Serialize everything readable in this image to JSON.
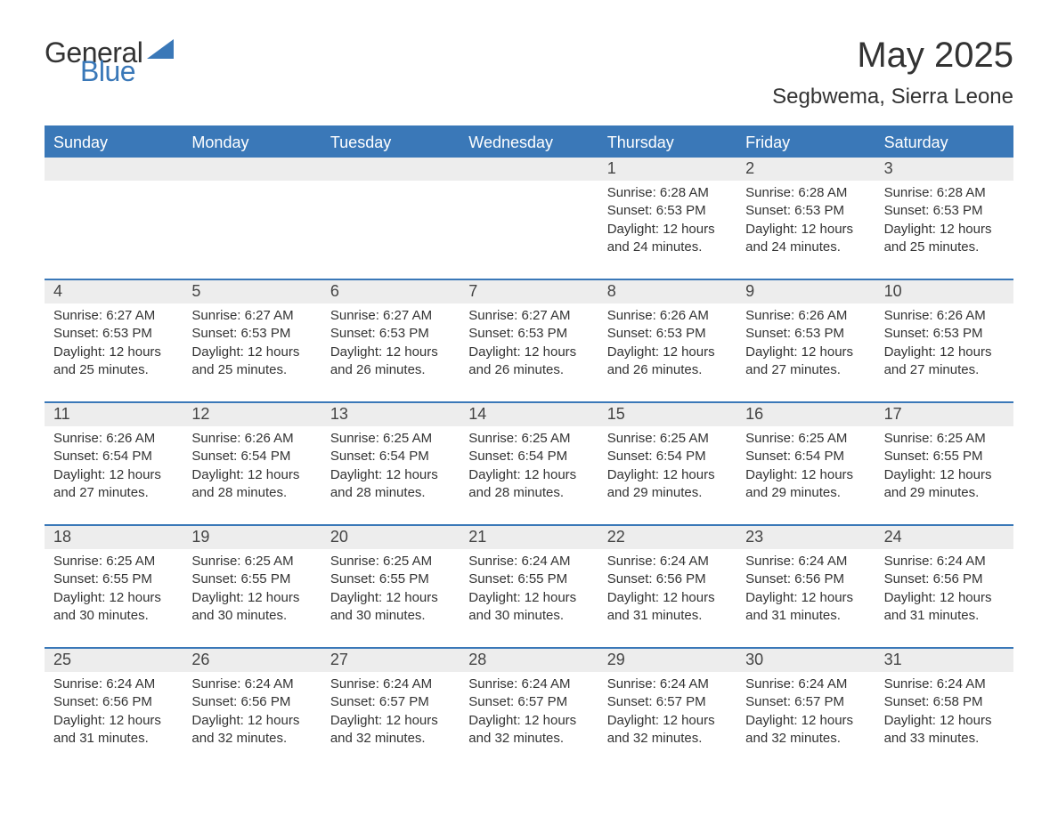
{
  "colors": {
    "brand_blue": "#3a78b8",
    "header_bg": "#3a78b8",
    "header_text": "#ffffff",
    "daynum_bg": "#ededed",
    "body_bg": "#ffffff",
    "text": "#333333",
    "rule": "#3a78b8"
  },
  "typography": {
    "title_fontsize": 40,
    "subtitle_fontsize": 24,
    "dayhead_fontsize": 18,
    "daynum_fontsize": 18,
    "body_fontsize": 15,
    "font_family": "Segoe UI, Arial, sans-serif"
  },
  "logo": {
    "word1": "General",
    "word2": "Blue"
  },
  "title": "May 2025",
  "subtitle": "Segbwema, Sierra Leone",
  "day_headers": [
    "Sunday",
    "Monday",
    "Tuesday",
    "Wednesday",
    "Thursday",
    "Friday",
    "Saturday"
  ],
  "labels": {
    "sunrise": "Sunrise: ",
    "sunset": "Sunset: ",
    "daylight": "Daylight: "
  },
  "weeks": [
    [
      null,
      null,
      null,
      null,
      {
        "n": "1",
        "sunrise": "6:28 AM",
        "sunset": "6:53 PM",
        "daylight": "12 hours and 24 minutes."
      },
      {
        "n": "2",
        "sunrise": "6:28 AM",
        "sunset": "6:53 PM",
        "daylight": "12 hours and 24 minutes."
      },
      {
        "n": "3",
        "sunrise": "6:28 AM",
        "sunset": "6:53 PM",
        "daylight": "12 hours and 25 minutes."
      }
    ],
    [
      {
        "n": "4",
        "sunrise": "6:27 AM",
        "sunset": "6:53 PM",
        "daylight": "12 hours and 25 minutes."
      },
      {
        "n": "5",
        "sunrise": "6:27 AM",
        "sunset": "6:53 PM",
        "daylight": "12 hours and 25 minutes."
      },
      {
        "n": "6",
        "sunrise": "6:27 AM",
        "sunset": "6:53 PM",
        "daylight": "12 hours and 26 minutes."
      },
      {
        "n": "7",
        "sunrise": "6:27 AM",
        "sunset": "6:53 PM",
        "daylight": "12 hours and 26 minutes."
      },
      {
        "n": "8",
        "sunrise": "6:26 AM",
        "sunset": "6:53 PM",
        "daylight": "12 hours and 26 minutes."
      },
      {
        "n": "9",
        "sunrise": "6:26 AM",
        "sunset": "6:53 PM",
        "daylight": "12 hours and 27 minutes."
      },
      {
        "n": "10",
        "sunrise": "6:26 AM",
        "sunset": "6:53 PM",
        "daylight": "12 hours and 27 minutes."
      }
    ],
    [
      {
        "n": "11",
        "sunrise": "6:26 AM",
        "sunset": "6:54 PM",
        "daylight": "12 hours and 27 minutes."
      },
      {
        "n": "12",
        "sunrise": "6:26 AM",
        "sunset": "6:54 PM",
        "daylight": "12 hours and 28 minutes."
      },
      {
        "n": "13",
        "sunrise": "6:25 AM",
        "sunset": "6:54 PM",
        "daylight": "12 hours and 28 minutes."
      },
      {
        "n": "14",
        "sunrise": "6:25 AM",
        "sunset": "6:54 PM",
        "daylight": "12 hours and 28 minutes."
      },
      {
        "n": "15",
        "sunrise": "6:25 AM",
        "sunset": "6:54 PM",
        "daylight": "12 hours and 29 minutes."
      },
      {
        "n": "16",
        "sunrise": "6:25 AM",
        "sunset": "6:54 PM",
        "daylight": "12 hours and 29 minutes."
      },
      {
        "n": "17",
        "sunrise": "6:25 AM",
        "sunset": "6:55 PM",
        "daylight": "12 hours and 29 minutes."
      }
    ],
    [
      {
        "n": "18",
        "sunrise": "6:25 AM",
        "sunset": "6:55 PM",
        "daylight": "12 hours and 30 minutes."
      },
      {
        "n": "19",
        "sunrise": "6:25 AM",
        "sunset": "6:55 PM",
        "daylight": "12 hours and 30 minutes."
      },
      {
        "n": "20",
        "sunrise": "6:25 AM",
        "sunset": "6:55 PM",
        "daylight": "12 hours and 30 minutes."
      },
      {
        "n": "21",
        "sunrise": "6:24 AM",
        "sunset": "6:55 PM",
        "daylight": "12 hours and 30 minutes."
      },
      {
        "n": "22",
        "sunrise": "6:24 AM",
        "sunset": "6:56 PM",
        "daylight": "12 hours and 31 minutes."
      },
      {
        "n": "23",
        "sunrise": "6:24 AM",
        "sunset": "6:56 PM",
        "daylight": "12 hours and 31 minutes."
      },
      {
        "n": "24",
        "sunrise": "6:24 AM",
        "sunset": "6:56 PM",
        "daylight": "12 hours and 31 minutes."
      }
    ],
    [
      {
        "n": "25",
        "sunrise": "6:24 AM",
        "sunset": "6:56 PM",
        "daylight": "12 hours and 31 minutes."
      },
      {
        "n": "26",
        "sunrise": "6:24 AM",
        "sunset": "6:56 PM",
        "daylight": "12 hours and 32 minutes."
      },
      {
        "n": "27",
        "sunrise": "6:24 AM",
        "sunset": "6:57 PM",
        "daylight": "12 hours and 32 minutes."
      },
      {
        "n": "28",
        "sunrise": "6:24 AM",
        "sunset": "6:57 PM",
        "daylight": "12 hours and 32 minutes."
      },
      {
        "n": "29",
        "sunrise": "6:24 AM",
        "sunset": "6:57 PM",
        "daylight": "12 hours and 32 minutes."
      },
      {
        "n": "30",
        "sunrise": "6:24 AM",
        "sunset": "6:57 PM",
        "daylight": "12 hours and 32 minutes."
      },
      {
        "n": "31",
        "sunrise": "6:24 AM",
        "sunset": "6:58 PM",
        "daylight": "12 hours and 33 minutes."
      }
    ]
  ]
}
